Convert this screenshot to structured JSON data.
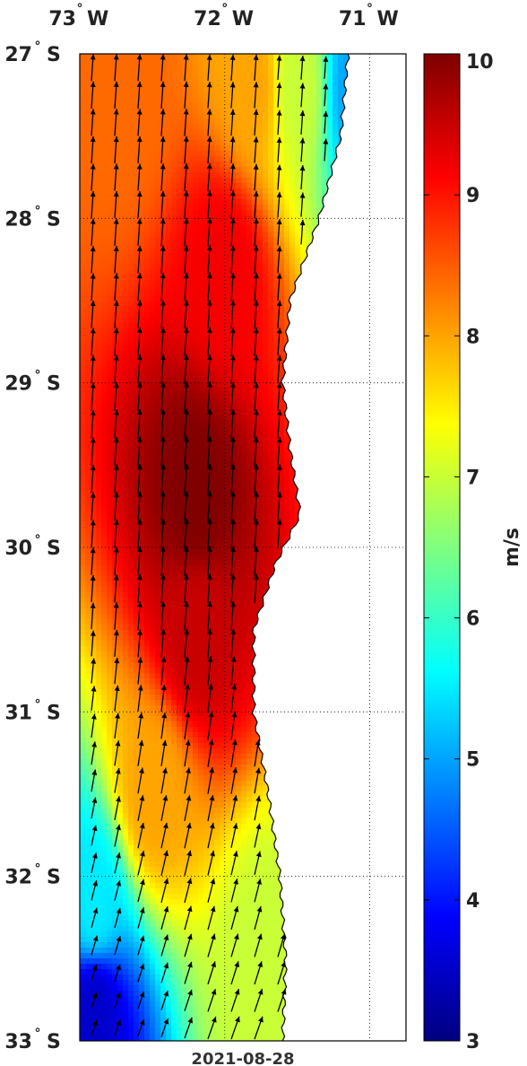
{
  "chart_data": {
    "type": "heatmap",
    "subtype": "wind-speed-map-with-vectors",
    "date": "2021-08-28",
    "lon_ticks": [
      {
        "value": -73,
        "deg": "73",
        "hem": "W"
      },
      {
        "value": -72,
        "deg": "72",
        "hem": "W"
      },
      {
        "value": -71,
        "deg": "71",
        "hem": "W"
      }
    ],
    "lat_ticks": [
      {
        "value": -27,
        "deg": "27",
        "hem": "S"
      },
      {
        "value": -28,
        "deg": "28",
        "hem": "S"
      },
      {
        "value": -29,
        "deg": "29",
        "hem": "S"
      },
      {
        "value": -30,
        "deg": "30",
        "hem": "S"
      },
      {
        "value": -31,
        "deg": "31",
        "hem": "S"
      },
      {
        "value": -32,
        "deg": "32",
        "hem": "S"
      },
      {
        "value": -33,
        "deg": "33",
        "hem": "S"
      }
    ],
    "lon_range": [
      -73.0,
      -70.75
    ],
    "lat_range": [
      -33.0,
      -27.0
    ],
    "degree_symbol": "°",
    "colorbar": {
      "label": "m/s",
      "min": 3,
      "max": 10,
      "ticks": [
        "3",
        "4",
        "5",
        "6",
        "7",
        "8",
        "9",
        "10"
      ],
      "colormap": "jet"
    },
    "wind_direction": "roughly northward, veering slightly to north-northeast in the south",
    "speed_field_description_points": [
      {
        "lat": -27.2,
        "lon": -72.7,
        "speed": 8.4
      },
      {
        "lat": -27.2,
        "lon": -71.8,
        "speed": 8.0
      },
      {
        "lat": -27.2,
        "lon": -71.5,
        "speed": 7.0
      },
      {
        "lat": -27.2,
        "lon": -71.1,
        "speed": 5.0
      },
      {
        "lat": -28.3,
        "lon": -72.0,
        "speed": 9.2
      },
      {
        "lat": -29.7,
        "lon": -72.2,
        "speed": 10.0
      },
      {
        "lat": -30.5,
        "lon": -72.2,
        "speed": 9.5
      },
      {
        "lat": -31.5,
        "lon": -72.5,
        "speed": 8.0
      },
      {
        "lat": -32.2,
        "lon": -72.9,
        "speed": 5.5
      },
      {
        "lat": -32.8,
        "lon": -72.9,
        "speed": 3.5
      },
      {
        "lat": -32.5,
        "lon": -71.7,
        "speed": 7.0
      }
    ],
    "coastline_note": "land (white) lies east of the coastline, approximately lon -71.15 at 27S to -71.7 at 33S",
    "grid": true
  },
  "colors": {
    "land": "#ffffff",
    "frame": "#000000",
    "arrow": "#000000"
  }
}
